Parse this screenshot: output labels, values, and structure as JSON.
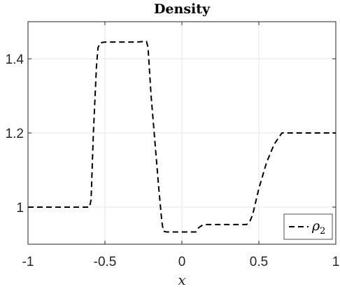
{
  "chart_data": {
    "type": "line",
    "title": "Density",
    "xlabel": "x",
    "ylabel": "",
    "xlim": [
      -1,
      1
    ],
    "ylim": [
      0.9,
      1.5
    ],
    "xticks": [
      -1,
      -0.5,
      0,
      0.5,
      1
    ],
    "xtick_labels": [
      "-1",
      "-0.5",
      "0",
      "0.5",
      "1"
    ],
    "yticks": [
      1,
      1.2,
      1.4
    ],
    "ytick_labels": [
      "1",
      "1.2",
      "1.4"
    ],
    "grid": true,
    "legend_position": "bottom-right",
    "series": [
      {
        "name": "ρ",
        "name_subscript": "2",
        "line_style": "dashed",
        "color": "#000000",
        "x": [
          -1,
          -0.6,
          -0.59,
          -0.575,
          -0.555,
          -0.545,
          -0.53,
          -0.5,
          -0.3,
          -0.23,
          -0.22,
          -0.2,
          -0.17,
          -0.15,
          -0.13,
          -0.12,
          -0.1,
          0.0,
          0.09,
          0.11,
          0.14,
          0.2,
          0.3,
          0.42,
          0.44,
          0.46,
          0.5,
          0.55,
          0.6,
          0.65,
          0.7,
          1.0
        ],
        "y": [
          1.0,
          1.0,
          1.02,
          1.2,
          1.38,
          1.43,
          1.443,
          1.445,
          1.445,
          1.447,
          1.43,
          1.3,
          1.15,
          1.05,
          0.96,
          0.935,
          0.933,
          0.933,
          0.933,
          0.945,
          0.953,
          0.953,
          0.953,
          0.953,
          0.96,
          0.98,
          1.05,
          1.12,
          1.17,
          1.2,
          1.2,
          1.2
        ]
      }
    ]
  }
}
